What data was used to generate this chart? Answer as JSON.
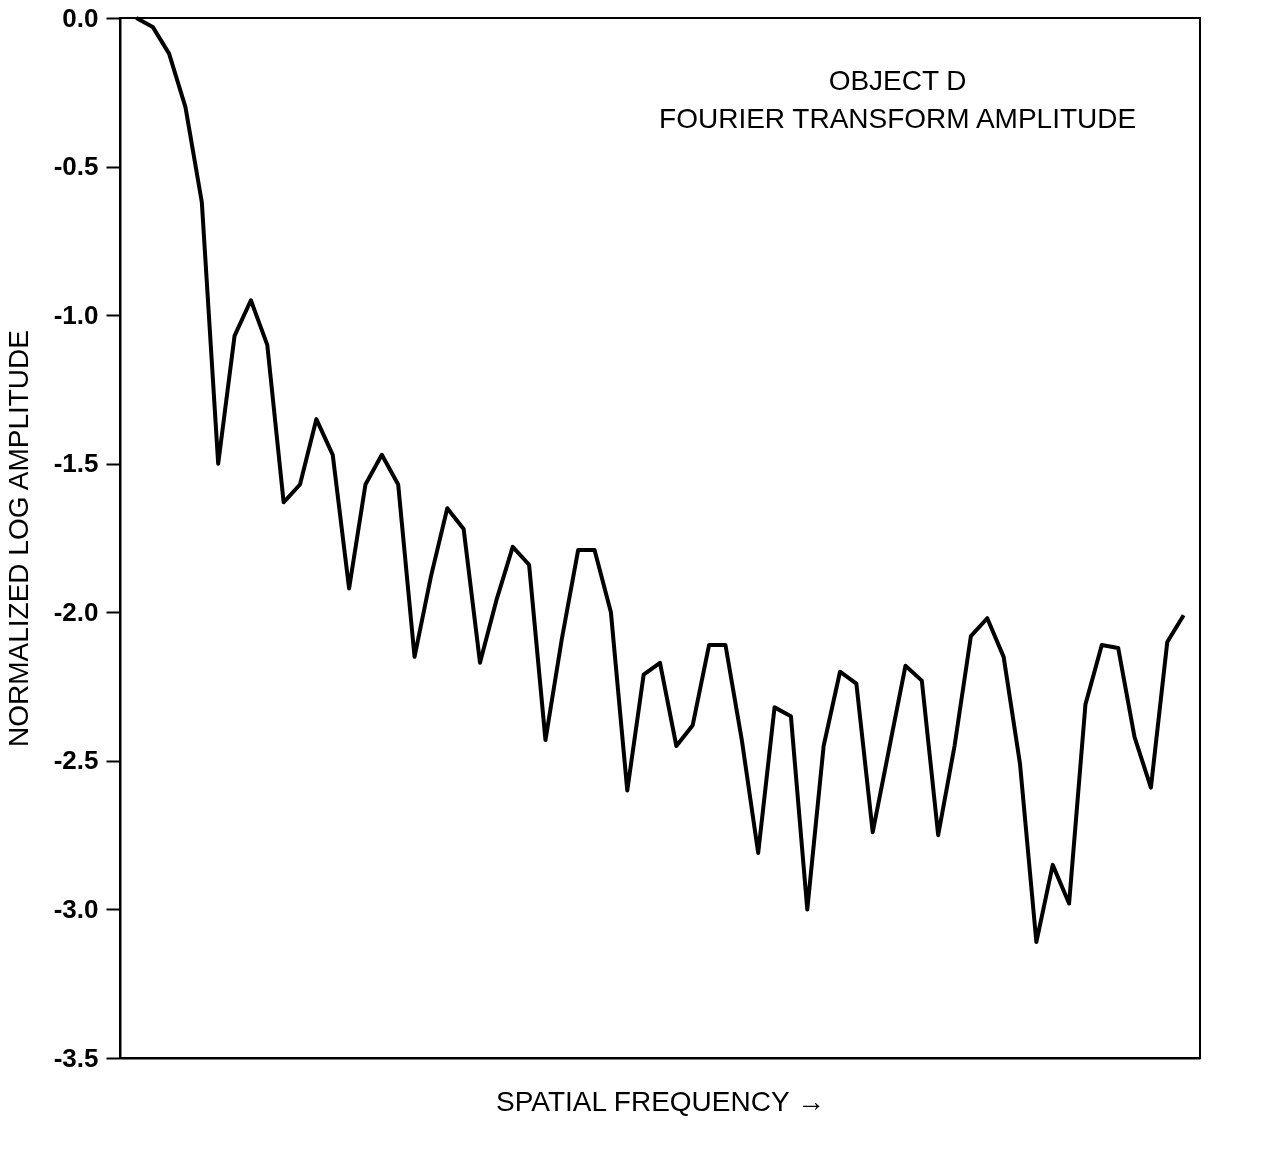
{
  "chart_data": {
    "type": "line",
    "title": "OBJECT D",
    "subtitle": "FOURIER TRANSFORM AMPLITUDE",
    "xlabel": "SPATIAL FREQUENCY →",
    "ylabel": "NORMALIZED LOG AMPLITUDE",
    "categories": [
      null,
      null,
      null,
      null,
      null,
      null,
      null,
      null,
      null,
      null,
      null,
      null,
      null,
      null,
      null,
      null,
      null,
      null,
      null,
      null,
      null,
      null,
      null,
      null,
      null,
      null,
      null,
      null,
      null,
      null,
      null,
      null,
      null,
      null,
      null,
      null,
      null,
      null,
      null,
      null,
      null,
      null,
      null,
      null,
      null,
      null,
      null,
      null,
      null,
      null,
      null,
      null,
      null,
      null,
      null,
      null,
      null,
      null,
      null,
      null,
      null,
      null,
      null,
      null,
      null
    ],
    "series": [
      {
        "color": "#000000",
        "values": [
          0.0,
          -0.03,
          -0.12,
          -0.3,
          -0.62,
          -1.5,
          -1.07,
          -0.95,
          -1.1,
          -1.63,
          -1.57,
          -1.35,
          -1.47,
          -1.92,
          -1.57,
          -1.47,
          -1.57,
          -2.15,
          -1.88,
          -1.65,
          -1.72,
          -2.17,
          -1.96,
          -1.78,
          -1.84,
          -2.43,
          -2.09,
          -1.79,
          -1.79,
          -2.0,
          -2.6,
          -2.21,
          -2.17,
          -2.45,
          -2.38,
          -2.11,
          -2.11,
          -2.43,
          -2.81,
          -2.32,
          -2.35,
          -3.0,
          -2.45,
          -2.2,
          -2.24,
          -2.74,
          -2.46,
          -2.18,
          -2.23,
          -2.75,
          -2.45,
          -2.08,
          -2.02,
          -2.15,
          -2.51,
          -3.11,
          -2.85,
          -2.98,
          -2.31,
          -2.11,
          -2.12,
          -2.42,
          -2.59,
          -2.1,
          -2.01
        ]
      }
    ],
    "ylim": [
      -3.5,
      0.0
    ],
    "yticks": [
      {
        "value": 0.0,
        "label": "0.0"
      },
      -0.5,
      {
        "value": -1.0,
        "label": "-1.0"
      },
      -1.5,
      {
        "value": -2.0,
        "label": "-2.0"
      },
      -2.5,
      {
        "value": -3.0,
        "label": "-3.0"
      },
      -3.5
    ],
    "grid": false,
    "marker": "none",
    "line_style": "solid",
    "tick_labels": "y"
  }
}
